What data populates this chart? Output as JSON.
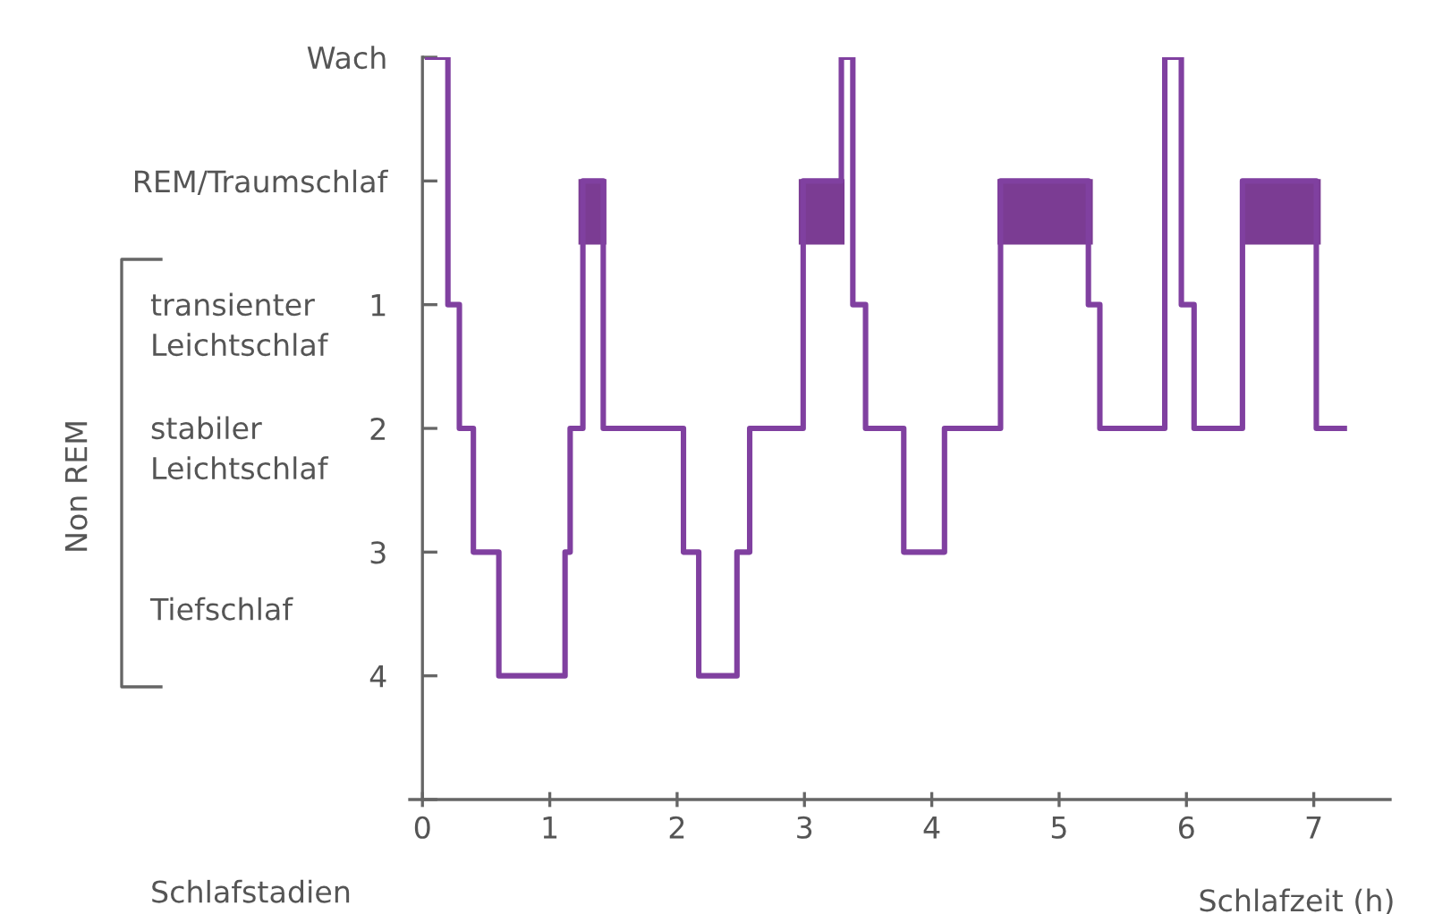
{
  "chart_data": {
    "type": "step",
    "xlabel": "Schlafzeit (h)",
    "annotations": [
      "transienter\nLeichtschlaf",
      "stabiler\nLeichtschlaf",
      "Tiefschlaf",
      "Non REM",
      "Schlafstadien"
    ],
    "series": [
      {
        "color": "#8040a0",
        "x": [
          0.04,
          0.2,
          0.29,
          0.4,
          0.6,
          1.12,
          1.16,
          1.26,
          1.42,
          2.05,
          2.17,
          2.47,
          2.57,
          2.99,
          3.29,
          3.38,
          3.48,
          3.78,
          4.1,
          4.54,
          5.23,
          5.32,
          5.83,
          5.96,
          6.06,
          6.44,
          7.02,
          7.24
        ],
        "values": [
          -1,
          1,
          2,
          3,
          4,
          3,
          2,
          0,
          2,
          3,
          4,
          3,
          2,
          0,
          -1,
          1,
          2,
          3,
          2,
          0,
          1,
          2,
          -1,
          1,
          2,
          0,
          2,
          2
        ]
      },
      {
        "type": "area",
        "color": "#7b3c93",
        "x": [
          1.24,
          1.24,
          1.43,
          1.43
        ],
        "values": [
          0.5,
          0,
          0,
          0.5
        ]
      },
      {
        "type": "area",
        "color": "#7b3c93",
        "x": [
          2.97,
          2.97,
          3.3,
          3.3
        ],
        "values": [
          0.5,
          0,
          0,
          0.5
        ]
      },
      {
        "type": "area",
        "color": "#7b3c93",
        "x": [
          4.53,
          4.53,
          5.25,
          5.25
        ],
        "values": [
          0.5,
          0,
          0,
          0.5
        ]
      },
      {
        "type": "area",
        "color": "#7b3c93",
        "x": [
          6.44,
          6.44,
          7.04,
          7.04
        ],
        "values": [
          0.5,
          0,
          0,
          0.5
        ]
      }
    ],
    "xlim": [
      -0.1,
      7.6
    ],
    "xticks": [
      0,
      1,
      2,
      3,
      4,
      5,
      6,
      7
    ],
    "ylim": [
      5,
      -1
    ],
    "yticks": [
      {
        "value": -1,
        "label": "Wach"
      },
      {
        "value": 0,
        "label": "REM/Traumschlaf"
      },
      1,
      2,
      3,
      4,
      {
        "value": 5,
        "label": null
      }
    ],
    "grid": false,
    "legend": false
  }
}
